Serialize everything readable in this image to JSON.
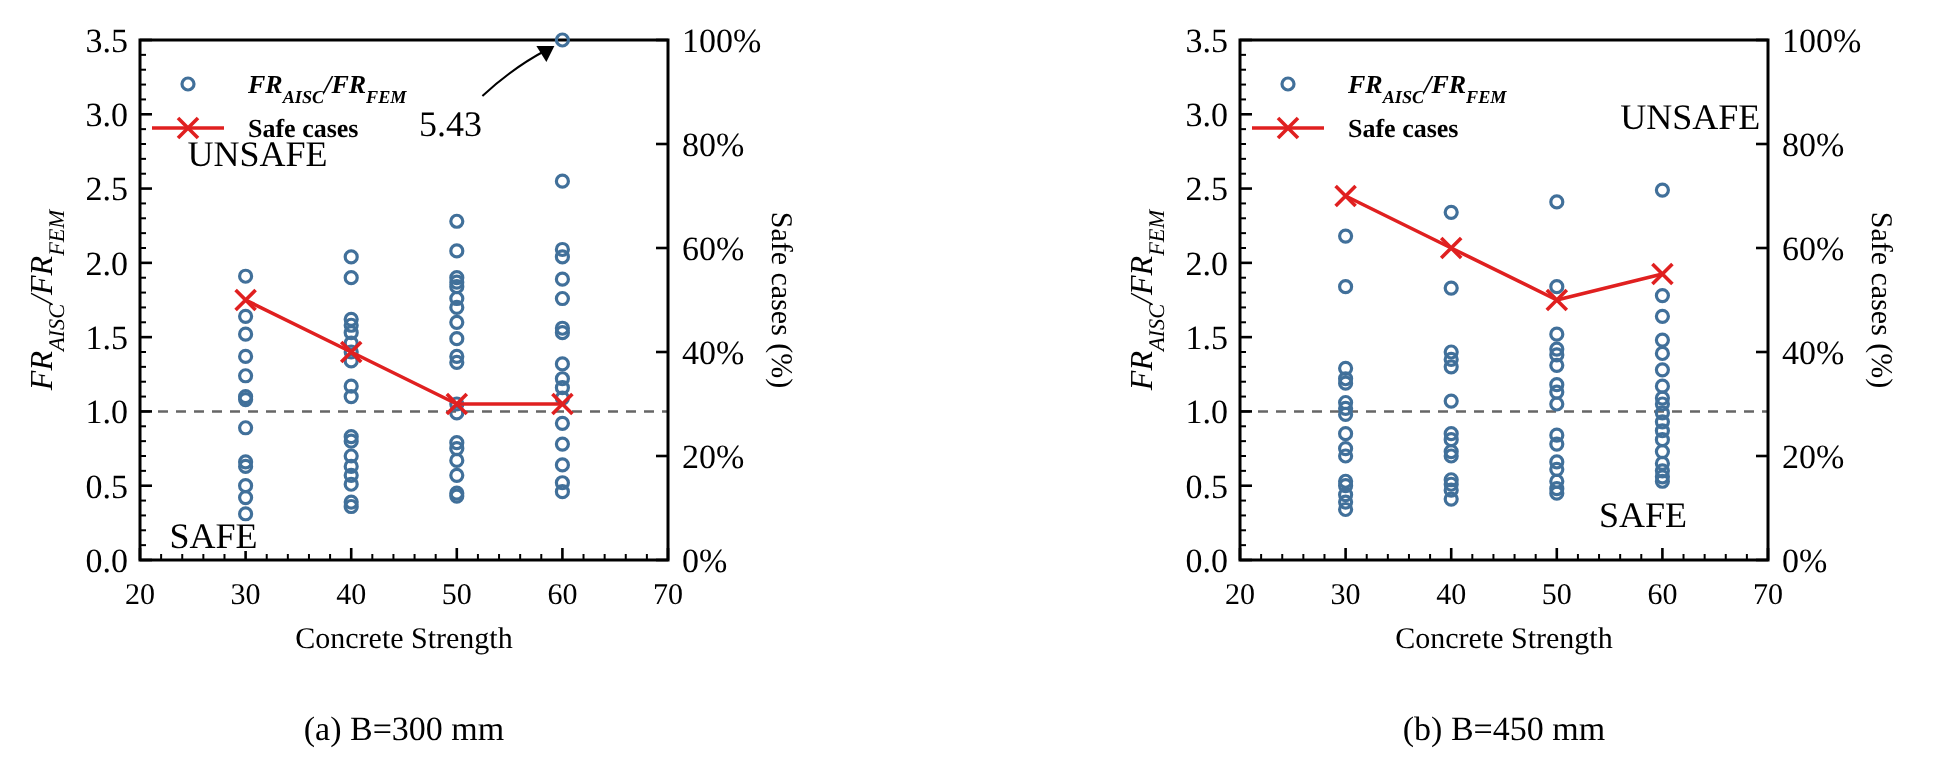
{
  "chart_data": [
    {
      "type": "scatter",
      "title": "(a) B=300 mm",
      "xlabel": "Concrete Strength",
      "ylabel": "FR$_{AISC}$/FR$_{FEM}$",
      "y2label": "Safe cases (%)",
      "xlim": [
        20,
        70
      ],
      "xticks": [
        20,
        30,
        40,
        50,
        60,
        70
      ],
      "ylim": [
        0,
        3.5
      ],
      "yticks": [
        {
          "value": 0,
          "label": "0.0"
        },
        {
          "value": 0.5,
          "label": "0.5"
        },
        {
          "value": 1,
          "label": "1.0"
        },
        {
          "value": 1.5,
          "label": "1.5"
        },
        {
          "value": 2,
          "label": "2.0"
        },
        {
          "value": 2.5,
          "label": "2.5"
        },
        {
          "value": 3,
          "label": "3.0"
        },
        {
          "value": 3.5,
          "label": "3.5"
        }
      ],
      "y2lim": [
        0,
        100
      ],
      "y2ticks": [
        {
          "value": 0,
          "label": "0%"
        },
        {
          "value": 20,
          "label": "20%"
        },
        {
          "value": 40,
          "label": "40%"
        },
        {
          "value": 60,
          "label": "60%"
        },
        {
          "value": 80,
          "label": "80%"
        },
        {
          "value": 100,
          "label": "100%"
        }
      ],
      "legend": "top left",
      "grid": false,
      "series": [
        {
          "name": "FR$_{AISC}$/FR$_{FEM}$",
          "marker": "circle",
          "color": "#41709a",
          "x": [
            30,
            30,
            30,
            30,
            30,
            30,
            30,
            30,
            30,
            30,
            30,
            30,
            30,
            40,
            40,
            40,
            40,
            40,
            40,
            40,
            40,
            40,
            40,
            40,
            40,
            40,
            40,
            40,
            40,
            40,
            40,
            50,
            50,
            50,
            50,
            50,
            50,
            50,
            50,
            50,
            50,
            50,
            50,
            50,
            50,
            50,
            50,
            50,
            50,
            50,
            60,
            60,
            60,
            60,
            60,
            60,
            60,
            60,
            60,
            60,
            60,
            60,
            60,
            60,
            60,
            60,
            60
          ],
          "values": [
            1.91,
            1.64,
            1.52,
            1.37,
            1.24,
            1.1,
            1.08,
            0.89,
            0.66,
            0.63,
            0.5,
            0.42,
            0.31,
            2.04,
            1.9,
            1.62,
            1.58,
            1.53,
            1.46,
            1.4,
            1.34,
            1.17,
            1.1,
            0.83,
            0.8,
            0.7,
            0.63,
            0.57,
            0.51,
            0.39,
            0.36,
            2.28,
            2.08,
            1.9,
            1.87,
            1.84,
            1.76,
            1.7,
            1.6,
            1.49,
            1.37,
            1.33,
            1.05,
            0.99,
            0.79,
            0.75,
            0.67,
            0.57,
            0.45,
            0.43,
            3.5,
            2.55,
            2.09,
            2.04,
            1.89,
            1.76,
            1.56,
            1.53,
            1.32,
            1.22,
            1.16,
            1.09,
            0.92,
            0.78,
            0.64,
            0.52,
            0.46
          ]
        },
        {
          "name": "Safe cases",
          "type": "line",
          "axis": "y2",
          "marker": "cross",
          "line_style": "solid",
          "color": "#e02020",
          "x": [
            30,
            40,
            50,
            60
          ],
          "values": [
            50,
            40,
            30,
            30
          ]
        }
      ],
      "ref_lines": [
        {
          "axis": "y",
          "value": 1,
          "color": "#666666",
          "line_style": "dashed"
        }
      ],
      "annotations": [
        {
          "text": "5.43",
          "x": 60,
          "y": 3.5
        },
        "UNSAFE",
        "SAFE"
      ]
    },
    {
      "type": "scatter",
      "title": "(b) B=450 mm",
      "xlabel": "Concrete Strength",
      "ylabel": "FR$_{AISC}$/FR$_{FEM}$",
      "y2label": "Safe cases (%)",
      "xlim": [
        20,
        70
      ],
      "xticks": [
        20,
        30,
        40,
        50,
        60,
        70
      ],
      "ylim": [
        0,
        3.5
      ],
      "yticks": [
        {
          "value": 0,
          "label": "0.0"
        },
        {
          "value": 0.5,
          "label": "0.5"
        },
        {
          "value": 1,
          "label": "1.0"
        },
        {
          "value": 1.5,
          "label": "1.5"
        },
        {
          "value": 2,
          "label": "2.0"
        },
        {
          "value": 2.5,
          "label": "2.5"
        },
        {
          "value": 3,
          "label": "3.0"
        },
        {
          "value": 3.5,
          "label": "3.5"
        }
      ],
      "y2lim": [
        0,
        100
      ],
      "y2ticks": [
        {
          "value": 0,
          "label": "0%"
        },
        {
          "value": 20,
          "label": "20%"
        },
        {
          "value": 40,
          "label": "40%"
        },
        {
          "value": 60,
          "label": "60%"
        },
        {
          "value": 80,
          "label": "80%"
        },
        {
          "value": 100,
          "label": "100%"
        }
      ],
      "legend": "top left",
      "grid": false,
      "series": [
        {
          "name": "FR$_{AISC}$/FR$_{FEM}$",
          "marker": "circle",
          "color": "#41709a",
          "x": [
            30,
            30,
            30,
            30,
            30,
            30,
            30,
            30,
            30,
            30,
            30,
            30,
            30,
            30,
            30,
            30,
            40,
            40,
            40,
            40,
            40,
            40,
            40,
            40,
            40,
            40,
            40,
            40,
            40,
            40,
            50,
            50,
            50,
            50,
            50,
            50,
            50,
            50,
            50,
            50,
            50,
            50,
            50,
            50,
            50,
            50,
            60,
            60,
            60,
            60,
            60,
            60,
            60,
            60,
            60,
            60,
            60,
            60,
            60,
            60,
            60,
            60,
            60,
            60
          ],
          "values": [
            2.18,
            1.84,
            1.29,
            1.22,
            1.19,
            1.06,
            1.02,
            0.98,
            0.85,
            0.75,
            0.7,
            0.53,
            0.5,
            0.44,
            0.39,
            0.34,
            2.34,
            1.83,
            1.4,
            1.35,
            1.3,
            1.07,
            0.85,
            0.81,
            0.73,
            0.7,
            0.54,
            0.51,
            0.47,
            0.41,
            2.41,
            1.84,
            1.52,
            1.42,
            1.38,
            1.31,
            1.18,
            1.13,
            1.05,
            0.84,
            0.78,
            0.66,
            0.61,
            0.53,
            0.48,
            0.45,
            2.49,
            1.78,
            1.64,
            1.48,
            1.39,
            1.28,
            1.17,
            1.09,
            1.05,
            0.99,
            0.93,
            0.87,
            0.81,
            0.73,
            0.65,
            0.6,
            0.56,
            0.53
          ]
        },
        {
          "name": "Safe cases",
          "type": "line",
          "axis": "y2",
          "marker": "cross",
          "line_style": "solid",
          "color": "#e02020",
          "x": [
            30,
            40,
            50,
            60
          ],
          "values": [
            70,
            60,
            50,
            55
          ]
        }
      ],
      "ref_lines": [
        {
          "axis": "y",
          "value": 1,
          "color": "#666666",
          "line_style": "dashed"
        }
      ],
      "annotations": [
        "UNSAFE",
        "SAFE"
      ]
    }
  ]
}
